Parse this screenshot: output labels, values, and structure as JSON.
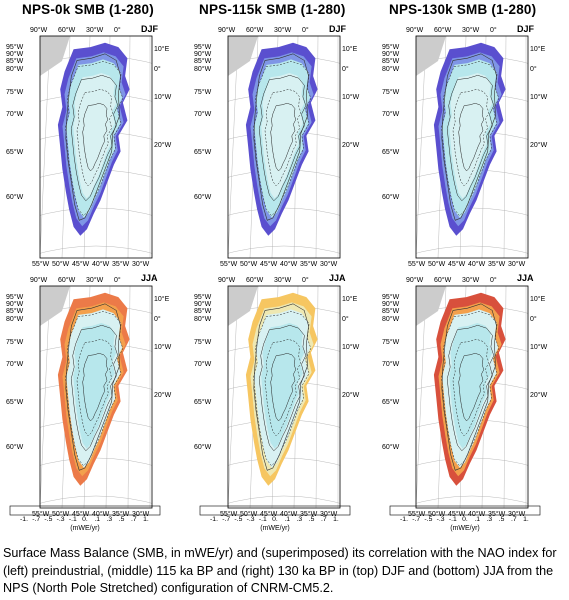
{
  "panels": [
    {
      "title": "NPS-0k  SMB  (1-280)",
      "season_top": "DJF",
      "season_bottom": "JJA"
    },
    {
      "title": "NPS-115k  SMB  (1-280)",
      "season_top": "DJF",
      "season_bottom": "JJA"
    },
    {
      "title": "NPS-130k  SMB  (1-280)",
      "season_top": "DJF",
      "season_bottom": "JJA"
    }
  ],
  "lat_labels_left": [
    "95°W",
    "90°W",
    "85°W",
    "80°W",
    "75°W",
    "70°W",
    "65°W",
    "60°W"
  ],
  "lon_labels_top": [
    "90°W",
    "60°W",
    "30°W",
    "0°"
  ],
  "lon_labels_right": [
    "10°E",
    "0°",
    "10°W",
    "20°W"
  ],
  "lon_labels_bottom": [
    "55°W",
    "50°W",
    "45°W",
    "40°W",
    "35°W",
    "30°W"
  ],
  "colorbar": {
    "labels": [
      "-1.",
      "-.7",
      "-.5",
      "-.3",
      "-.1",
      "0.",
      ".1",
      ".3",
      ".5",
      ".7",
      "1."
    ],
    "unit": "(mWE/yr)",
    "colors": [
      "#b23232",
      "#d8503c",
      "#ec7a48",
      "#f3a04c",
      "#f6c661",
      "#f6df7e",
      "#eee8b2",
      "#ffffff",
      "#d8f1f2",
      "#b7e7ec",
      "#8fd4e4",
      "#7ab7e8",
      "#7f96e6",
      "#6f72dc",
      "#5a4fcf"
    ]
  },
  "caption": "Surface Mass Balance (SMB, in mWE/yr) and (superimposed) its correlation with the NAO index for (left) preindustrial, (middle) 115 ka BP and (right) 130 ka BP in (top) DJF and (bottom) JJA from the NPS (North Pole Stretched) configuration of CNRM-CM5.2."
}
